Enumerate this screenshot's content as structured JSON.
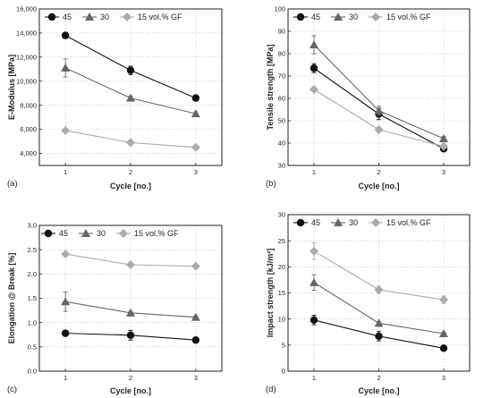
{
  "chart_data": [
    {
      "type": "line",
      "panel_label": "(a)",
      "xlabel": "Cycle [no.]",
      "ylabel": "E-Modulus [MPa]",
      "x": [
        1,
        2,
        3
      ],
      "xlim": [
        0.6,
        3.4
      ],
      "xticks": [
        "1",
        "2",
        "3"
      ],
      "ylim": [
        3000,
        16000
      ],
      "yticks": [
        4000,
        6000,
        8000,
        10000,
        12000,
        14000,
        16000
      ],
      "ytick_labels": [
        "4,000",
        "6,000",
        "8,000",
        "10,000",
        "12,000",
        "14,000",
        "16,000"
      ],
      "grid": true,
      "legend_position": "top",
      "series": [
        {
          "name": "45",
          "marker": "circle",
          "color": "#111111",
          "values": [
            13800,
            10900,
            8600
          ],
          "errors": [
            250,
            350,
            150
          ]
        },
        {
          "name": "30",
          "marker": "triangle",
          "color": "#666666",
          "values": [
            11100,
            8600,
            7300
          ],
          "errors": [
            750,
            150,
            150
          ]
        },
        {
          "name": "15 vol.% GF",
          "marker": "diamond",
          "color": "#aaaaaa",
          "values": [
            5900,
            4900,
            4500
          ],
          "errors": [
            100,
            100,
            100
          ]
        }
      ]
    },
    {
      "type": "line",
      "panel_label": "(b)",
      "xlabel": "Cycle [no.]",
      "ylabel": "Tensile strength [MPa]",
      "x": [
        1,
        2,
        3
      ],
      "xlim": [
        0.6,
        3.4
      ],
      "xticks": [
        "1",
        "2",
        "3"
      ],
      "ylim": [
        30,
        100
      ],
      "yticks": [
        30,
        40,
        50,
        60,
        70,
        80,
        90,
        100
      ],
      "ytick_labels": [
        "30",
        "40",
        "50",
        "60",
        "70",
        "80",
        "90",
        "100"
      ],
      "grid": true,
      "legend_position": "top",
      "series": [
        {
          "name": "45",
          "marker": "circle",
          "color": "#111111",
          "values": [
            73.5,
            53,
            37.5
          ],
          "errors": [
            2,
            2.5,
            1
          ]
        },
        {
          "name": "30",
          "marker": "triangle",
          "color": "#666666",
          "values": [
            84,
            54.5,
            42
          ],
          "errors": [
            4,
            2,
            1
          ]
        },
        {
          "name": "15 vol.% GF",
          "marker": "diamond",
          "color": "#aaaaaa",
          "values": [
            64,
            46,
            38.5
          ],
          "errors": [
            1,
            1,
            1
          ]
        }
      ]
    },
    {
      "type": "line",
      "panel_label": "(c)",
      "xlabel": "Cycle [no.]",
      "ylabel": "Elongation @ Break [%]",
      "x": [
        1,
        2,
        3
      ],
      "xlim": [
        0.6,
        3.4
      ],
      "xticks": [
        "1",
        "2",
        "3"
      ],
      "ylim": [
        0,
        3.0
      ],
      "yticks": [
        0,
        0.5,
        1.0,
        1.5,
        2.0,
        2.5,
        3.0
      ],
      "ytick_labels": [
        "0.0",
        "0.5",
        "1.0",
        "1.5",
        "2.0",
        "2.5",
        "3.0"
      ],
      "grid": true,
      "legend_position": "top",
      "series": [
        {
          "name": "45",
          "marker": "circle",
          "color": "#111111",
          "values": [
            0.78,
            0.74,
            0.64
          ],
          "errors": [
            0.03,
            0.1,
            0.03
          ]
        },
        {
          "name": "30",
          "marker": "triangle",
          "color": "#666666",
          "values": [
            1.43,
            1.2,
            1.11
          ],
          "errors": [
            0.2,
            0.03,
            0.03
          ]
        },
        {
          "name": "15 vol.% GF",
          "marker": "diamond",
          "color": "#aaaaaa",
          "values": [
            2.41,
            2.19,
            2.16
          ],
          "errors": [
            0.03,
            0.03,
            0.03
          ]
        }
      ]
    },
    {
      "type": "line",
      "panel_label": "(d)",
      "xlabel": "Cycle [no.]",
      "ylabel": "Impact strength [kJ/m²]",
      "x": [
        1,
        2,
        3
      ],
      "xlim": [
        0.6,
        3.4
      ],
      "xticks": [
        "1",
        "2",
        "3"
      ],
      "ylim": [
        0,
        30
      ],
      "yticks": [
        0,
        5,
        10,
        15,
        20,
        25,
        30
      ],
      "ytick_labels": [
        "0",
        "5",
        "10",
        "15",
        "20",
        "25",
        "30"
      ],
      "grid": true,
      "legend_position": "top",
      "series": [
        {
          "name": "45",
          "marker": "circle",
          "color": "#111111",
          "values": [
            9.8,
            6.7,
            4.4
          ],
          "errors": [
            0.9,
            0.9,
            0.3
          ]
        },
        {
          "name": "30",
          "marker": "triangle",
          "color": "#666666",
          "values": [
            17,
            9.2,
            7.2
          ],
          "errors": [
            1.5,
            0.3,
            0.3
          ]
        },
        {
          "name": "15 vol.% GF",
          "marker": "diamond",
          "color": "#aaaaaa",
          "values": [
            23,
            15.6,
            13.7
          ],
          "errors": [
            1.6,
            0.7,
            0.7
          ]
        }
      ]
    }
  ]
}
